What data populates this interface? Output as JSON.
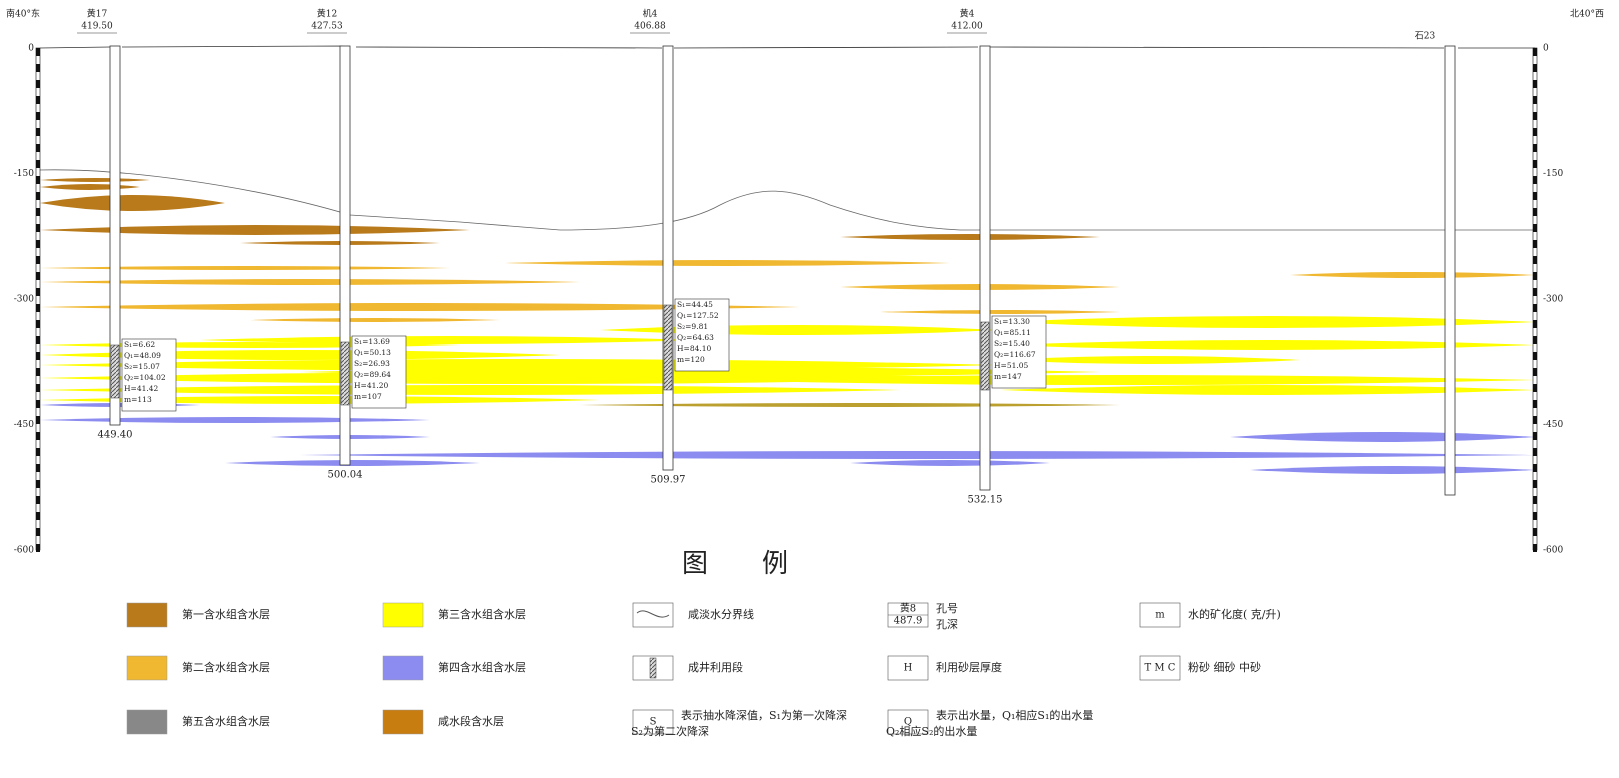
{
  "header": {
    "left_direction": "南40°东",
    "right_direction": "北40°西"
  },
  "depth_axis": {
    "left_ticks": [
      "0",
      "-150",
      "-300",
      "-450",
      "-600"
    ],
    "right_ticks": [
      "0",
      "-150",
      "-300",
      "-450",
      "-600"
    ]
  },
  "wells": [
    {
      "name": "黄17",
      "elevation": "419.50",
      "depth": "449.40",
      "params": [
        "S₁=6.62",
        "Q₁=48.09",
        "S₂=15.07",
        "Q₂=104.02",
        "H=41.42",
        "m=113"
      ]
    },
    {
      "name": "黄12",
      "elevation": "427.53",
      "depth": "500.04",
      "params": [
        "S₁=13.69",
        "Q₁=50.13",
        "S₂=26.93",
        "Q₂=89.64",
        "H=41.20",
        "m=107"
      ]
    },
    {
      "name": "机4",
      "elevation": "406.88",
      "depth": "509.97",
      "params": [
        "S₁=44.45",
        "Q₁=127.52",
        "S₂=9.81",
        "Q₂=64.63",
        "H=84.10",
        "m=120"
      ]
    },
    {
      "name": "黄4",
      "elevation": "412.00",
      "depth": "532.15",
      "params": [
        "S₁=13.30",
        "Q₁=85.11",
        "S₂=15.40",
        "Q₂=116.67",
        "H=51.05",
        "m=147"
      ]
    },
    {
      "name": "石23"
    }
  ],
  "legend": {
    "title": [
      "图",
      "例"
    ],
    "items": [
      {
        "label": [
          "第一含水组含水层"
        ]
      },
      {
        "label": [
          "第三含水组含水层"
        ]
      },
      {
        "label": [
          "咸淡水分界线"
        ]
      },
      {
        "symbol": [
          "黄8",
          "487.9"
        ],
        "label": [
          "孔号",
          "孔深"
        ]
      },
      {
        "symbol": [
          "m"
        ],
        "label": [
          "水的矿化度( 克/升)"
        ]
      },
      {
        "label": [
          "第二含水组含水层"
        ]
      },
      {
        "label": [
          "第四含水组含水层"
        ]
      },
      {
        "label": [
          "成井利用段"
        ]
      },
      {
        "symbol": [
          "H"
        ],
        "label": [
          "利用砂层厚度"
        ]
      },
      {
        "symbol": [
          "T M C"
        ],
        "label": [
          "粉砂  细砂  中砂"
        ]
      },
      {
        "label": [
          "第五含水组含水层"
        ]
      },
      {
        "label": [
          "咸水段含水层"
        ]
      },
      {
        "symbol": [
          "S"
        ],
        "label": [
          "表示抽水降深值，S₁为第一次降深",
          "S₂为第二次降深"
        ]
      },
      {
        "symbol": [
          "Q"
        ],
        "label": [
          "表示出水量，Q₁相应S₁的出水量",
          "Q₂相应S₂的出水量"
        ]
      }
    ]
  }
}
